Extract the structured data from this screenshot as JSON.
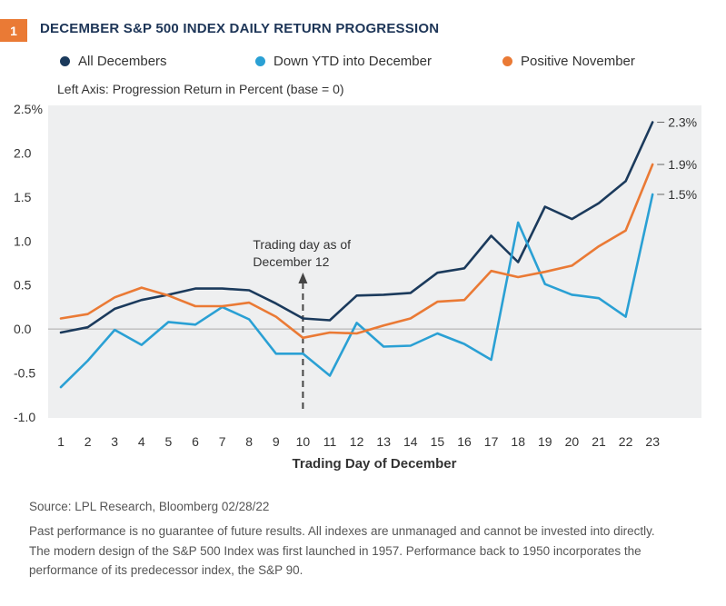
{
  "figure": {
    "number": "1",
    "title": "DECEMBER S&P 500 INDEX DAILY RETURN PROGRESSION"
  },
  "legend": [
    {
      "label": "All Decembers",
      "color": "#1b3a5c"
    },
    {
      "label": "Down YTD into December",
      "color": "#2aa0d4"
    },
    {
      "label": "Positive November",
      "color": "#ea7a35"
    }
  ],
  "axis_note": "Left Axis: Progression Return in Percent (base = 0)",
  "annotation": {
    "line1": "Trading day as of",
    "line2": "December 12",
    "at_x": 10
  },
  "end_labels": [
    "2.3%",
    "1.9%",
    "1.5%"
  ],
  "footer": {
    "source": "Source: LPL Research, Bloomberg  02/28/22",
    "line1": "Past performance is no guarantee of future results. All indexes are unmanaged and cannot be invested into directly.",
    "line2": "The modern design of the S&P 500 Index was first launched in 1957. Performance back to 1950 incorporates the",
    "line3": "performance of its predecessor index, the S&P 90."
  },
  "chart_data": {
    "type": "line",
    "title": "DECEMBER S&P 500 INDEX DAILY RETURN PROGRESSION",
    "xlabel": "Trading Day of December",
    "ylabel": "Left Axis: Progression Return in Percent (base = 0)",
    "x": [
      1,
      2,
      3,
      4,
      5,
      6,
      7,
      8,
      9,
      10,
      11,
      12,
      13,
      14,
      15,
      16,
      17,
      18,
      19,
      20,
      21,
      22,
      23
    ],
    "ylim": [
      -1.0,
      2.5
    ],
    "yticks": [
      -1.0,
      -0.5,
      0.0,
      0.5,
      1.0,
      1.5,
      2.0,
      2.5
    ],
    "ytick_labels": [
      "-1.0",
      "-0.5",
      "0.0",
      "0.5",
      "1.0",
      "1.5",
      "2.0",
      "2.5%"
    ],
    "grid": false,
    "legend_position": "top",
    "series": [
      {
        "name": "All Decembers",
        "color": "#1b3a5c",
        "values": [
          -0.04,
          0.02,
          0.23,
          0.33,
          0.39,
          0.46,
          0.46,
          0.44,
          0.29,
          0.12,
          0.1,
          0.38,
          0.39,
          0.41,
          0.64,
          0.69,
          1.06,
          0.76,
          1.39,
          1.25,
          1.43,
          1.68,
          2.35
        ]
      },
      {
        "name": "Down YTD into December",
        "color": "#2aa0d4",
        "values": [
          -0.66,
          -0.36,
          -0.01,
          -0.18,
          0.08,
          0.05,
          0.25,
          0.11,
          -0.28,
          -0.28,
          -0.53,
          0.07,
          -0.2,
          -0.19,
          -0.05,
          -0.17,
          -0.35,
          1.21,
          0.51,
          0.39,
          0.35,
          0.14,
          1.53
        ]
      },
      {
        "name": "Positive November",
        "color": "#ea7a35",
        "values": [
          0.12,
          0.17,
          0.36,
          0.47,
          0.38,
          0.26,
          0.26,
          0.3,
          0.14,
          -0.1,
          -0.04,
          -0.05,
          0.04,
          0.12,
          0.31,
          0.33,
          0.66,
          0.59,
          0.65,
          0.72,
          0.94,
          1.12,
          1.87
        ]
      }
    ]
  }
}
